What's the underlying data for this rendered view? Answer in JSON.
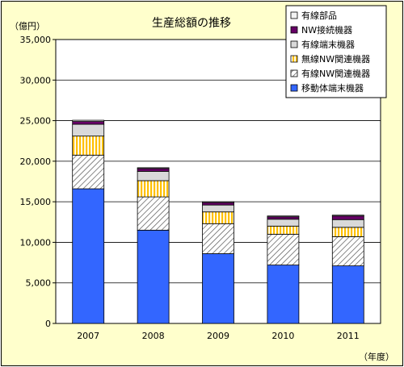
{
  "chart_data": {
    "type": "bar",
    "stacked": true,
    "title": "生産総額の推移",
    "ylabel": "（億円）",
    "xlabel": "（年度）",
    "categories": [
      "2007",
      "2008",
      "2009",
      "2010",
      "2011"
    ],
    "ylim": [
      0,
      35000
    ],
    "yticks": [
      0,
      5000,
      10000,
      15000,
      20000,
      25000,
      30000,
      35000
    ],
    "ytick_labels": [
      "0",
      "5,000",
      "10,000",
      "15,000",
      "20,000",
      "25,000",
      "30,000",
      "35,000"
    ],
    "grid": true,
    "legend_position": "top-right",
    "series": [
      {
        "name": "移動体端末機器",
        "values": [
          16600,
          11500,
          8600,
          7200,
          7100
        ],
        "color": "#3366ff",
        "pattern": "solid"
      },
      {
        "name": "有線NW関連機器",
        "values": [
          4150,
          4100,
          3700,
          3800,
          3600
        ],
        "color": "#ffffff",
        "pattern": "diagonal-hatch"
      },
      {
        "name": "無線NW関連機器",
        "values": [
          2350,
          2000,
          1450,
          1000,
          1150
        ],
        "color": "#ffc000",
        "pattern": "vertical-stripes"
      },
      {
        "name": "有線端末機器",
        "values": [
          1450,
          1150,
          850,
          850,
          950
        ],
        "color": "#d9d9d9",
        "pattern": "solid"
      },
      {
        "name": "NW接続機器",
        "values": [
          350,
          350,
          300,
          300,
          450
        ],
        "color": "#660066",
        "pattern": "solid"
      },
      {
        "name": "有線部品",
        "values": [
          150,
          100,
          100,
          100,
          100
        ],
        "color": "#f2f2f2",
        "pattern": "solid"
      }
    ]
  }
}
